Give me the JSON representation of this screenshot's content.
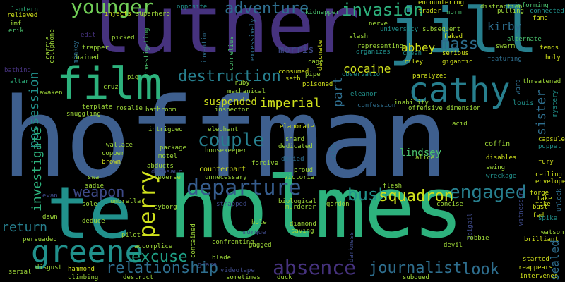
{
  "palette": {
    "purple": "#46327e",
    "indigo": "#3e4a89",
    "blue": "#365c8d",
    "steel": "#2e6e8e",
    "teal": "#277f8e",
    "cyan": "#21918c",
    "sea": "#1fa187",
    "green": "#2db27d",
    "lime": "#4ac16d",
    "yellowgreen": "#71cf57",
    "light": "#a0da39",
    "yellow": "#d0e11c",
    "dim": "#433e85"
  },
  "words": [
    {
      "text": "hoffman",
      "w": 1.0
    },
    {
      "text": "holmes",
      "w": 0.62
    },
    {
      "text": "luther",
      "w": 0.58
    },
    {
      "text": "te",
      "w": 0.5
    },
    {
      "text": "jill",
      "w": 0.42
    },
    {
      "text": "film",
      "w": 0.3
    },
    {
      "text": "cathy",
      "w": 0.25
    },
    {
      "text": "greene",
      "w": 0.2
    },
    {
      "text": "departure",
      "w": 0.17
    },
    {
      "text": "younger",
      "w": 0.15
    },
    {
      "text": "adventure",
      "w": 0.12
    },
    {
      "text": "invasion",
      "w": 0.13
    },
    {
      "text": "destruction",
      "w": 0.12
    },
    {
      "text": "couple",
      "w": 0.14
    },
    {
      "text": "perry",
      "w": 0.16
    },
    {
      "text": "absence",
      "w": 0.15
    },
    {
      "text": "relationship",
      "w": 0.12
    },
    {
      "text": "engaged",
      "w": 0.14
    },
    {
      "text": "bush",
      "w": 0.12
    },
    {
      "text": "squadron",
      "w": 0.12
    },
    {
      "text": "journalist",
      "w": 0.12
    },
    {
      "text": "excuse",
      "w": 0.12
    },
    {
      "text": "look",
      "w": 0.12
    },
    {
      "text": "weapon",
      "w": 0.11
    },
    {
      "text": "return",
      "w": 0.1
    },
    {
      "text": "mass",
      "w": 0.12
    },
    {
      "text": "imperial",
      "w": 0.1
    },
    {
      "text": "suspended",
      "w": 0.09
    },
    {
      "text": "possession",
      "w": 0.1
    },
    {
      "text": "investigate",
      "w": 0.1
    },
    {
      "text": "sister",
      "w": 0.1
    },
    {
      "text": "abbey",
      "w": 0.09
    },
    {
      "text": "cocaine",
      "w": 0.09
    },
    {
      "text": "kirby",
      "w": 0.09
    },
    {
      "text": "part",
      "w": 0.09
    },
    {
      "text": "lindsey",
      "w": 0.08
    },
    {
      "text": "morris",
      "w": 0.08
    },
    {
      "text": "coffin",
      "w": 0.06
    },
    {
      "text": "louis",
      "w": 0.06
    },
    {
      "text": "sealed",
      "w": 0.08
    }
  ],
  "small_words": [
    "lantern",
    "erik",
    "imf",
    "relieved",
    "carrie",
    "cellphone",
    "injects",
    "superhero",
    "trapper",
    "chained",
    "investigating",
    "picked",
    "opposite",
    "invention",
    "cornelius",
    "kidnapper",
    "nerve",
    "encountering",
    "trader",
    "norm",
    "distraction",
    "informing",
    "connected",
    "fame",
    "university",
    "subsequent",
    "slash",
    "representing",
    "clean",
    "organizes",
    "serious",
    "gigantic",
    "faked",
    "pulling",
    "swarm",
    "alternate",
    "tends",
    "holy",
    "featuring",
    "riley",
    "pipe",
    "observation",
    "consumed",
    "seth",
    "poisoned",
    "paralyzed",
    "threatened",
    "ward",
    "mystery",
    "capsule",
    "puppet",
    "template",
    "rosalie",
    "bathroom",
    "cruz",
    "pig",
    "ruby",
    "mechanical",
    "inspector",
    "eleanor",
    "confession",
    "inability",
    "offensive",
    "dimension",
    "acid",
    "intrigued",
    "elephant",
    "elaborate",
    "housekeeper",
    "shard",
    "dedicated",
    "denied",
    "alice",
    "disables",
    "swing",
    "wreckage",
    "fury",
    "ceiling",
    "envelope",
    "forge",
    "bust",
    "fed",
    "spike",
    "watson",
    "brilliant",
    "started",
    "reappears",
    "intervenes",
    "unlock",
    "witnessing",
    "wallace",
    "copper",
    "brown",
    "package",
    "motel",
    "abducts",
    "dinosaur",
    "counterpart",
    "unnecessary",
    "forgive",
    "proud",
    "victoria",
    "flesh",
    "swan",
    "sadie",
    "reverse",
    "umbrella",
    "cyborg",
    "biological",
    "murderer",
    "gordon",
    "concise",
    "take",
    "abigail",
    "sole",
    "strapped",
    "hole",
    "morgue",
    "diamond",
    "saving",
    "devil",
    "robbie",
    "darkness",
    "evan",
    "dawn",
    "deduce",
    "pilot",
    "accomplice",
    "contained",
    "confronting",
    "gagged",
    "persuaded",
    "hammond",
    "climbing",
    "disgust",
    "serial",
    "destruct",
    "videotape",
    "sometimes",
    "duck",
    "subdued",
    "blade",
    "grace",
    "altar",
    "awaken",
    "bathing",
    "smuggling",
    "edit",
    "monkey",
    "cage",
    "detonate",
    "wing",
    "excessively",
    "take"
  ]
}
